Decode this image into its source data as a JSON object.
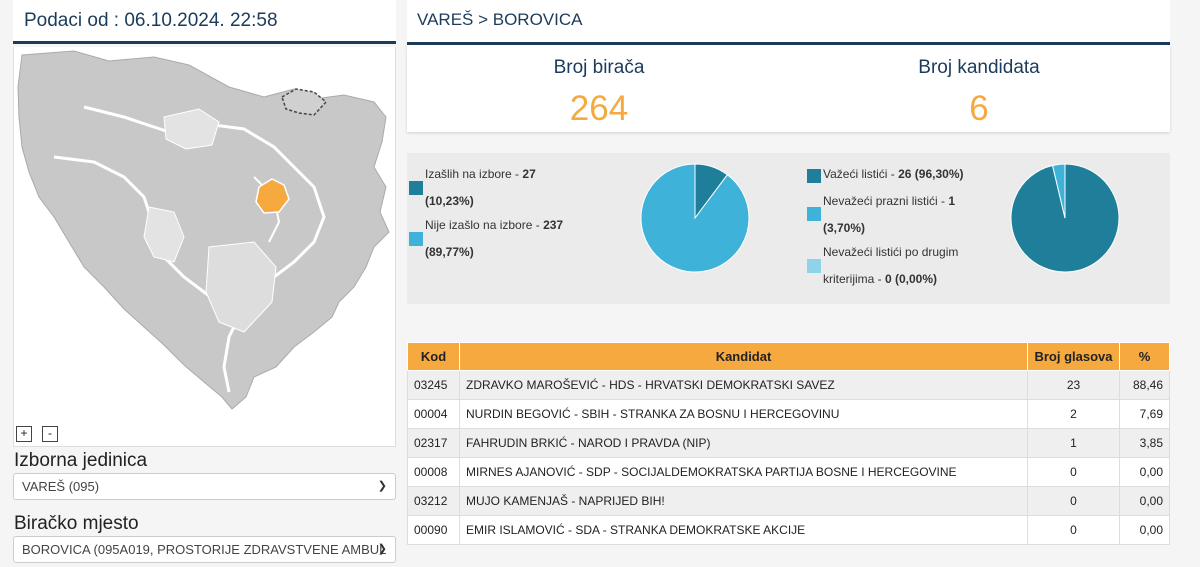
{
  "left": {
    "data_timestamp": "Podaci od : 06.10.2024. 22:58",
    "zoom_in": "+",
    "zoom_out": "-",
    "unit_label": "Izborna jedinica",
    "unit_value": "VAREŠ (095)",
    "station_label": "Biračko mjesto",
    "station_value": "BOROVICA (095A019, PROSTORIJE ZDRAVSTVENE AMBUL"
  },
  "breadcrumb": "VAREŠ > BOROVICA",
  "stats": {
    "voters_label": "Broj birača",
    "voters_value": "264",
    "candidates_label": "Broj kandidata",
    "candidates_value": "6"
  },
  "turnout": {
    "items": [
      {
        "label": "Izašlih na izbore - ",
        "value": "27",
        "pct": "(10,23%)",
        "color": "#1f7f9a"
      },
      {
        "label": "Nije izašlo na izbore - ",
        "value": "237",
        "pct": "(89,77%)",
        "color": "#3eb2d8"
      }
    ]
  },
  "ballots": {
    "items": [
      {
        "label": "Važeći listići - ",
        "value": "26 (96,30%)",
        "color": "#1f7f9a"
      },
      {
        "label": "Nevažeći prazni listići - ",
        "value": "1",
        "pct": "(3,70%)",
        "color": "#3eb2d8"
      },
      {
        "label": "Nevažeći listići po drugim",
        "label2": "kriterijima - ",
        "value": "0 (0,00%)",
        "color": "#8dd3ea"
      }
    ]
  },
  "pie_turnout": [
    0.1023,
    0.8977
  ],
  "pie_ballots": [
    0.963,
    0.037,
    0.0
  ],
  "table": {
    "headers": [
      "Kod",
      "Kandidat",
      "Broj glasova",
      "%"
    ],
    "rows": [
      [
        "03245",
        "ZDRAVKO MAROŠEVIĆ - HDS - HRVATSKI DEMOKRATSKI SAVEZ",
        "23",
        "88,46"
      ],
      [
        "00004",
        "NURDIN BEGOVIĆ - SBIH - STRANKA ZA BOSNU I HERCEGOVINU",
        "2",
        "7,69"
      ],
      [
        "02317",
        "FAHRUDIN BRKIĆ - NAROD I PRAVDA (NIP)",
        "1",
        "3,85"
      ],
      [
        "00008",
        "MIRNES AJANOVIĆ - SDP - SOCIJALDEMOKRATSKA PARTIJA BOSNE I HERCEGOVINE",
        "0",
        "0,00"
      ],
      [
        "03212",
        "MUJO KAMENJAŠ - NAPRIJED BIH!",
        "0",
        "0,00"
      ],
      [
        "00090",
        "EMIR ISLAMOVIĆ - SDA - STRANKA DEMOKRATSKE AKCIJE",
        "0",
        "0,00"
      ]
    ]
  }
}
